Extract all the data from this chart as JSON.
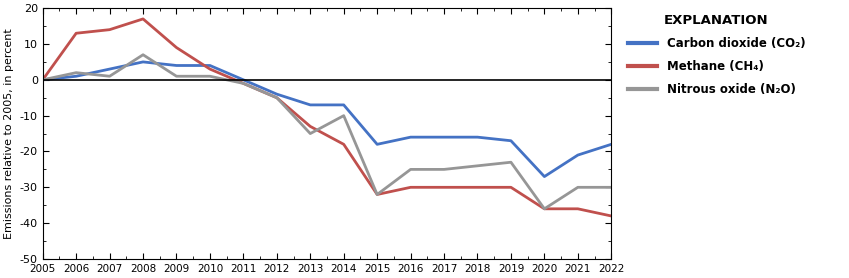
{
  "years": [
    2005,
    2006,
    2007,
    2008,
    2009,
    2010,
    2011,
    2012,
    2013,
    2014,
    2015,
    2016,
    2017,
    2018,
    2019,
    2020,
    2021,
    2022
  ],
  "co2": [
    0,
    1,
    3,
    5,
    4,
    4,
    0,
    -4,
    -7,
    -7,
    -18,
    -16,
    -16,
    -16,
    -17,
    -27,
    -21,
    -18
  ],
  "methane": [
    0,
    13,
    14,
    17,
    9,
    3,
    -1,
    -5,
    -13,
    -18,
    -32,
    -30,
    -30,
    -30,
    -30,
    -36,
    -36,
    -38
  ],
  "n2o": [
    0,
    2,
    1,
    7,
    1,
    1,
    -1,
    -5,
    -15,
    -10,
    -32,
    -25,
    -25,
    -24,
    -23,
    -36,
    -30,
    -30
  ],
  "co2_color": "#4472C4",
  "methane_color": "#C0504D",
  "n2o_color": "#969696",
  "ylabel": "Emissions relative to 2005, in percent",
  "ylim": [
    -50,
    20
  ],
  "yticks": [
    -50,
    -40,
    -30,
    -20,
    -10,
    0,
    10,
    20
  ],
  "legend_title": "EXPLANATION",
  "legend_co2": "Carbon dioxide (CO₂)",
  "legend_methane": "Methane (CH₄)",
  "legend_n2o": "Nitrous oxide (N₂O)",
  "linewidth": 2.0,
  "figwidth": 8.49,
  "figheight": 2.78,
  "dpi": 100
}
